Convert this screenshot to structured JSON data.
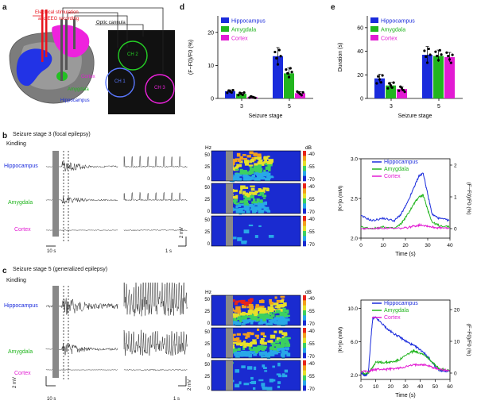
{
  "panels": {
    "a": "a",
    "b": "b",
    "c": "c",
    "d": "d",
    "e": "e"
  },
  "a": {
    "stim_label_1": "Electrical stimulation",
    "stim_label_2": "and EEG recording",
    "optic_label": "Optic cannula",
    "region_cortex": "Cortex",
    "region_amygdala": "Amygdala",
    "region_hippocampus": "Hippocampus",
    "ch1": "CH 1",
    "ch2": "CH 2",
    "ch3": "CH 3"
  },
  "b": {
    "title": "Seizure stage 3 (focal epilepsy)",
    "kindling": "Kindling",
    "row_hippocampus": "Hippocampus",
    "row_amygdala": "Amygdala",
    "row_cortex": "Cortex",
    "scale_v": "2 mV",
    "scale_t1": "10 s",
    "scale_t2": "1 s",
    "hz": "Hz",
    "db": "dB",
    "spec_y": [
      "50",
      "25",
      "0"
    ],
    "spec_db": [
      "-40",
      "-55",
      "-70"
    ],
    "legend": [
      "Hippocampus",
      "Amygdala",
      "Cortex"
    ],
    "xlabel": "Time (s)",
    "ylabel_left": "[K+]o (mM)",
    "ylabel_right": "(F−F0)/F0 (%)"
  },
  "c": {
    "title": "Seizure stage 5 (generalized epilepsy)",
    "kindling": "Kindling",
    "row_hippocampus": "Hippocampus",
    "row_amygdala": "Amygdala",
    "row_cortex": "Cortex",
    "scale_v": "2 mV",
    "scale_t1": "10 s",
    "scale_t2": "1 s",
    "hz": "Hz",
    "db": "dB",
    "spec_y": [
      "50",
      "25",
      "0"
    ],
    "spec_db": [
      "-40",
      "-55",
      "-70"
    ],
    "legend": [
      "Hippocampus",
      "Amygdala",
      "Cortex"
    ],
    "xlabel": "Time (s)",
    "ylabel_left": "[K+]o (mM)",
    "ylabel_right": "(F−F0)/F0 (%)"
  },
  "colors": {
    "hippocampus": "#1a2bdc",
    "amygdala": "#22b51f",
    "cortex": "#e21bd3"
  },
  "chart_data": [
    {
      "id": "d",
      "type": "bar",
      "title": "",
      "xlabel": "Seizure stage",
      "ylabel": "(F−F0)/F0 (%)",
      "categories": [
        "3",
        "5"
      ],
      "ylim": [
        0,
        25
      ],
      "yticks": [
        0,
        10,
        20
      ],
      "legend": [
        "Hippocampus",
        "Amygdala",
        "Cortex"
      ],
      "series": [
        {
          "name": "Hippocampus",
          "values": [
            2.2,
            12.8
          ],
          "err": [
            0.4,
            2.6
          ]
        },
        {
          "name": "Amygdala",
          "values": [
            1.4,
            7.6
          ],
          "err": [
            0.4,
            1.6
          ]
        },
        {
          "name": "Cortex",
          "values": [
            0.4,
            1.6
          ],
          "err": [
            0.2,
            0.5
          ]
        }
      ]
    },
    {
      "id": "e",
      "type": "bar",
      "title": "",
      "xlabel": "Seizure stage",
      "ylabel": "Duration (s)",
      "categories": [
        "3",
        "5"
      ],
      "ylim": [
        0,
        70
      ],
      "yticks": [
        0,
        20,
        40,
        60
      ],
      "legend": [
        "Hippocampus",
        "Amygdala",
        "Cortex"
      ],
      "series": [
        {
          "name": "Hippocampus",
          "values": [
            17,
            37
          ],
          "err": [
            3.5,
            7
          ]
        },
        {
          "name": "Amygdala",
          "values": [
            11,
            36
          ],
          "err": [
            2.5,
            5
          ]
        },
        {
          "name": "Cortex",
          "values": [
            8,
            35
          ],
          "err": [
            2,
            4
          ]
        }
      ]
    },
    {
      "id": "b-trace",
      "type": "line",
      "xlabel": "Time (s)",
      "ylabel": "[K+]o (mM)",
      "y2label": "(F−F0)/F0 (%)",
      "xlim": [
        0,
        40
      ],
      "xticks": [
        0,
        10,
        20,
        30,
        40
      ],
      "ylim": [
        2.0,
        3.0
      ],
      "yticks": [
        2.0,
        2.5,
        3.0
      ],
      "y2lim": [
        -0.3,
        2.2
      ],
      "y2ticks": [
        0,
        1,
        2
      ],
      "legend": [
        "Hippocampus",
        "Amygdala",
        "Cortex"
      ],
      "series": [
        {
          "name": "Hippocampus",
          "axis": "left",
          "x": [
            0,
            5,
            10,
            15,
            18,
            21,
            24,
            26,
            28,
            30,
            32,
            35,
            40
          ],
          "y": [
            2.28,
            2.22,
            2.25,
            2.22,
            2.3,
            2.45,
            2.65,
            2.78,
            2.82,
            2.55,
            2.3,
            2.25,
            2.22
          ]
        },
        {
          "name": "Amygdala",
          "axis": "right",
          "x": [
            0,
            5,
            10,
            15,
            18,
            21,
            24,
            26,
            28,
            30,
            32,
            35,
            40
          ],
          "y": [
            0.05,
            0.0,
            0.05,
            0.0,
            0.15,
            0.45,
            0.8,
            1.0,
            1.05,
            0.6,
            0.2,
            0.1,
            0.05
          ]
        },
        {
          "name": "Cortex",
          "axis": "right",
          "x": [
            0,
            5,
            10,
            15,
            20,
            24,
            27,
            30,
            33,
            36,
            40
          ],
          "y": [
            0.0,
            0.0,
            0.02,
            0.0,
            0.02,
            0.08,
            0.12,
            0.08,
            0.04,
            0.02,
            0.0
          ]
        }
      ]
    },
    {
      "id": "c-trace",
      "type": "line",
      "xlabel": "Time (s)",
      "ylabel": "[K+]o (mM)",
      "y2label": "(F−F0)/F0 (%)",
      "xlim": [
        0,
        60
      ],
      "xticks": [
        0,
        10,
        20,
        30,
        40,
        50,
        60
      ],
      "ylim": [
        1.5,
        11.0
      ],
      "yticks": [
        2.0,
        6.0,
        10.0
      ],
      "y2lim": [
        -2,
        23
      ],
      "y2ticks": [
        0,
        10,
        20
      ],
      "legend": [
        "Hippocampus",
        "Amygdala",
        "Cortex"
      ],
      "series": [
        {
          "name": "Hippocampus",
          "axis": "left",
          "x": [
            0,
            3,
            5,
            7,
            8,
            10,
            14,
            18,
            22,
            26,
            30,
            34,
            38,
            42,
            46,
            50,
            53,
            56,
            60
          ],
          "y": [
            2.2,
            2.0,
            2.3,
            7.0,
            8.8,
            8.9,
            8.2,
            7.5,
            7.0,
            6.6,
            6.1,
            5.7,
            5.3,
            4.8,
            4.0,
            3.0,
            2.6,
            2.5,
            2.5
          ]
        },
        {
          "name": "Amygdala",
          "axis": "right",
          "x": [
            0,
            3,
            6,
            8,
            10,
            14,
            18,
            22,
            26,
            30,
            34,
            36,
            38,
            42,
            46,
            50,
            53,
            56,
            60
          ],
          "y": [
            0.5,
            -0.3,
            0.5,
            2.0,
            3.5,
            3.3,
            3.4,
            3.6,
            4.2,
            5.5,
            6.6,
            7.0,
            6.6,
            6.0,
            4.5,
            2.5,
            1.2,
            1.0,
            1.0
          ]
        },
        {
          "name": "Cortex",
          "axis": "right",
          "x": [
            0,
            5,
            8,
            12,
            16,
            20,
            25,
            30,
            35,
            40,
            45,
            50,
            55,
            60
          ],
          "y": [
            0.5,
            0.5,
            1.0,
            1.2,
            1.2,
            1.3,
            1.5,
            2.0,
            2.5,
            2.8,
            2.4,
            1.5,
            1.0,
            0.8
          ]
        }
      ]
    }
  ]
}
